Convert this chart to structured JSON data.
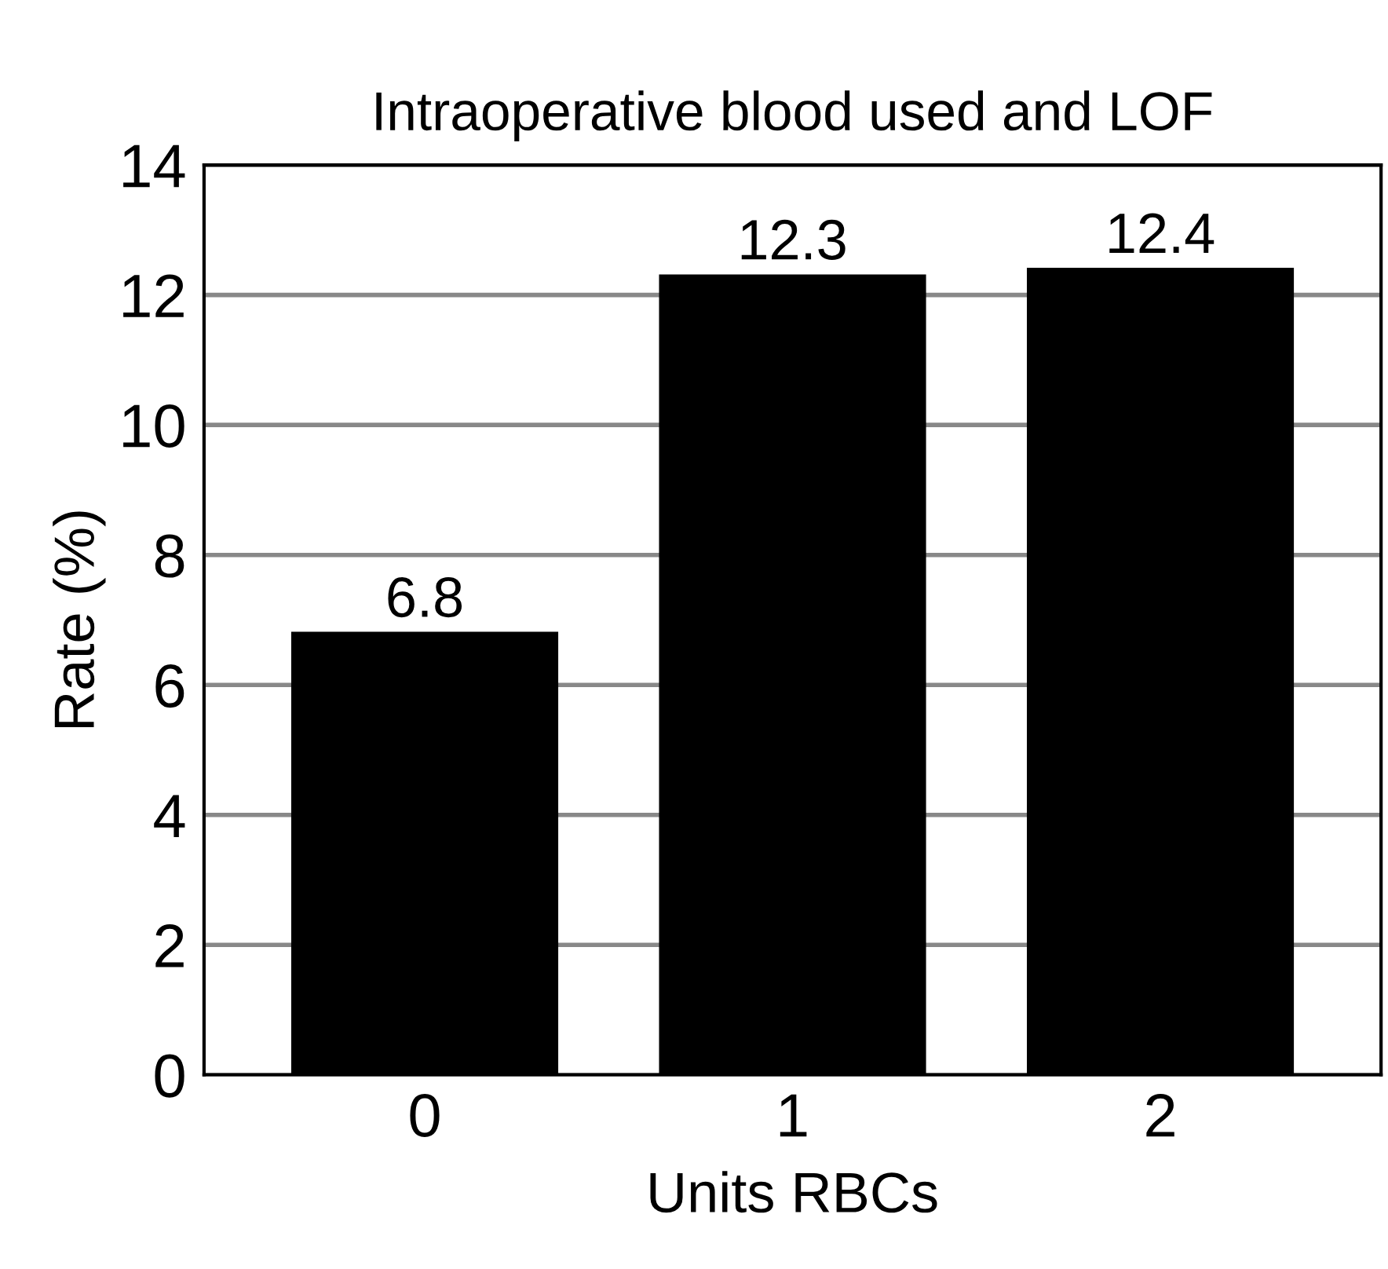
{
  "chart_data": {
    "type": "bar",
    "title": "Intraoperative blood used and LOF",
    "xlabel": "Units RBCs",
    "ylabel": "Rate (%)",
    "categories": [
      "0",
      "1",
      "2"
    ],
    "values": [
      6.8,
      12.3,
      12.4
    ],
    "color": "#000000",
    "ylim": [
      0,
      14
    ],
    "yticks": [
      0,
      2,
      4,
      6,
      8,
      10,
      12,
      14
    ],
    "grid": "y",
    "data_labels": true
  }
}
